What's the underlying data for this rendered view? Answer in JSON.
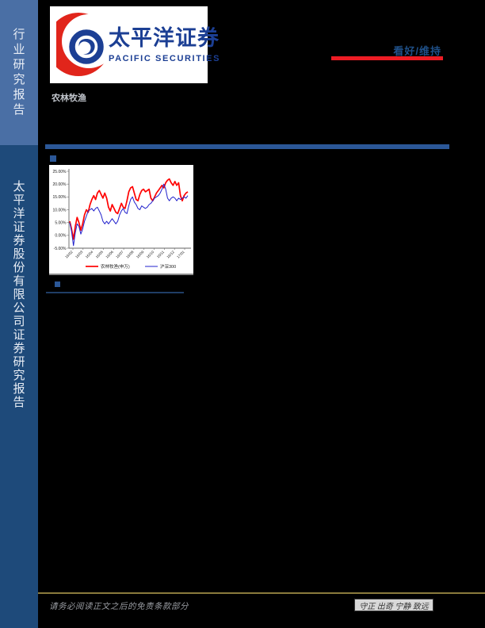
{
  "sidebar": {
    "top_label": "行业研究报告",
    "bottom_label": "太平洋证券股份有限公司证券研究报告"
  },
  "logo": {
    "cn_name": "太平洋证券",
    "en_name": "PACIFIC SECURITIES",
    "brand_blue": "#1c3f94",
    "brand_red": "#e1251b"
  },
  "header": {
    "sector_label": "农林牧渔",
    "rating": "看好/维持",
    "rating_underline_color": "#ed1c24"
  },
  "footer": {
    "disclaimer": "请务必阅读正文之后的免责条款部分",
    "motto": "守正 出奇 宁静 致远"
  },
  "colors": {
    "sidebar_top": "#4a6fa5",
    "sidebar_bottom": "#1e4a7a",
    "section_bar": "#2b5797",
    "footer_rule": "#8a7b3c",
    "page_background": "#000000"
  },
  "chart_data": {
    "type": "line",
    "title": "",
    "xlabel": "",
    "ylabel": "",
    "ylim": [
      -5,
      25
    ],
    "grid": false,
    "legend_position": "bottom",
    "yticks": [
      "25.00%",
      "20.00%",
      "15.00%",
      "10.00%",
      "5.00%",
      "0.00%",
      "-5.00%"
    ],
    "ytick_values": [
      25,
      20,
      15,
      10,
      5,
      0,
      -5
    ],
    "x_labels": [
      "16/02",
      "16/03",
      "16/04",
      "16/05",
      "16/06",
      "16/07",
      "16/08",
      "16/09",
      "16/10",
      "16/11",
      "16/12",
      "17/01"
    ],
    "series": [
      {
        "name": "农林牧渔(申万)",
        "color": "#ff0000",
        "values": [
          5.5,
          2.5,
          -1.5,
          3.5,
          7,
          5,
          2,
          4.5,
          8,
          10,
          9,
          12,
          14,
          15.5,
          14,
          16.5,
          17.5,
          16,
          14.5,
          16.5,
          14.5,
          11,
          9.5,
          12,
          10.5,
          9,
          8.5,
          10.5,
          12.5,
          11,
          10.5,
          13.5,
          17,
          18.5,
          19,
          16.5,
          14,
          13.5,
          16,
          17.5,
          18,
          17,
          17.5,
          18,
          14.5,
          13.5,
          15,
          16.5,
          17.5,
          18.5,
          19.5,
          18.5,
          20.5,
          21.5,
          22,
          20.5,
          19.5,
          21,
          19.5,
          20.5,
          15.5,
          13.5,
          15.5,
          16.5,
          17
        ]
      },
      {
        "name": "沪深300",
        "color": "#2222cc",
        "values": [
          5,
          1.5,
          -4,
          1,
          4.5,
          3.5,
          0.5,
          2.5,
          5.5,
          7.5,
          9.5,
          10,
          10.5,
          9.5,
          10.5,
          11,
          9.5,
          8,
          5.5,
          4.5,
          5.5,
          4.5,
          5.5,
          6.5,
          5.5,
          4.5,
          5.5,
          8,
          9.5,
          10.5,
          9,
          8.5,
          11.5,
          14,
          15,
          13,
          12,
          10.5,
          10,
          11.5,
          11,
          10.5,
          11,
          12,
          12.5,
          13.5,
          14.5,
          15,
          15.5,
          16.5,
          18,
          20,
          18,
          14.5,
          13.5,
          14.5,
          15,
          14.5,
          13.5,
          14.5,
          14,
          14.5,
          15,
          14.5,
          15.5
        ]
      }
    ]
  }
}
